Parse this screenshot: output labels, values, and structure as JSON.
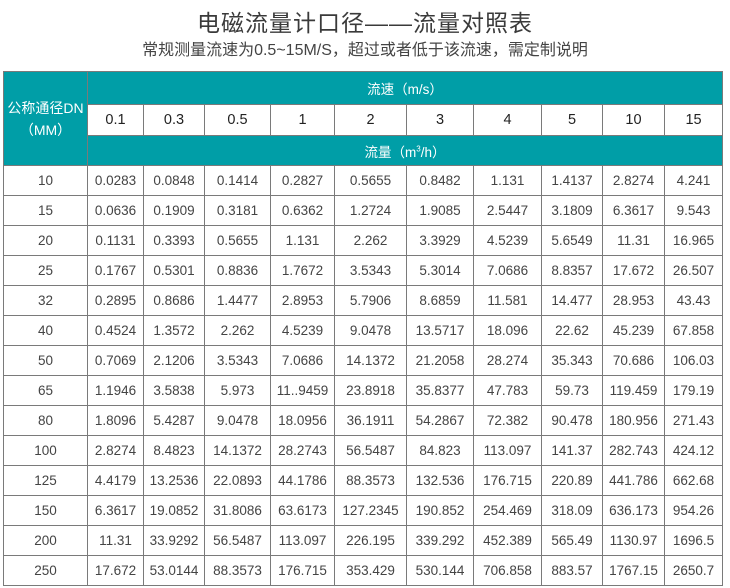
{
  "title": "电磁流量计口径——流量对照表",
  "subtitle": "常规测量流速为0.5~15M/S，超过或者低于该流速，需定制说明",
  "colors": {
    "header_bg": "#009ea7",
    "header_text": "#ffffff",
    "border": "#7a7a7a"
  },
  "table": {
    "dn_header_line1": "公称通径DN",
    "dn_header_line2": "（MM）",
    "velocity_header": "流速（m/s）",
    "flow_header_prefix": "流量（m",
    "flow_header_sup": "3",
    "flow_header_suffix": "/h）",
    "velocities": [
      "0.1",
      "0.3",
      "0.5",
      "1",
      "2",
      "3",
      "4",
      "5",
      "10",
      "15"
    ],
    "rows": [
      {
        "dn": "10",
        "values": [
          "0.0283",
          "0.0848",
          "0.1414",
          "0.2827",
          "0.5655",
          "0.8482",
          "1.131",
          "1.4137",
          "2.8274",
          "4.241"
        ]
      },
      {
        "dn": "15",
        "values": [
          "0.0636",
          "0.1909",
          "0.3181",
          "0.6362",
          "1.2724",
          "1.9085",
          "2.5447",
          "3.1809",
          "6.3617",
          "9.543"
        ]
      },
      {
        "dn": "20",
        "values": [
          "0.1131",
          "0.3393",
          "0.5655",
          "1.131",
          "2.262",
          "3.3929",
          "4.5239",
          "5.6549",
          "11.31",
          "16.965"
        ]
      },
      {
        "dn": "25",
        "values": [
          "0.1767",
          "0.5301",
          "0.8836",
          "1.7672",
          "3.5343",
          "5.3014",
          "7.0686",
          "8.8357",
          "17.672",
          "26.507"
        ]
      },
      {
        "dn": "32",
        "values": [
          "0.2895",
          "0.8686",
          "1.4477",
          "2.8953",
          "5.7906",
          "8.6859",
          "11.581",
          "14.477",
          "28.953",
          "43.43"
        ]
      },
      {
        "dn": "40",
        "values": [
          "0.4524",
          "1.3572",
          "2.262",
          "4.5239",
          "9.0478",
          "13.5717",
          "18.096",
          "22.62",
          "45.239",
          "67.858"
        ]
      },
      {
        "dn": "50",
        "values": [
          "0.7069",
          "2.1206",
          "3.5343",
          "7.0686",
          "14.1372",
          "21.2058",
          "28.274",
          "35.343",
          "70.686",
          "106.03"
        ]
      },
      {
        "dn": "65",
        "values": [
          "1.1946",
          "3.5838",
          "5.973",
          "11..9459",
          "23.8918",
          "35.8377",
          "47.783",
          "59.73",
          "119.459",
          "179.19"
        ]
      },
      {
        "dn": "80",
        "values": [
          "1.8096",
          "5.4287",
          "9.0478",
          "18.0956",
          "36.1911",
          "54.2867",
          "72.382",
          "90.478",
          "180.956",
          "271.43"
        ]
      },
      {
        "dn": "100",
        "values": [
          "2.8274",
          "8.4823",
          "14.1372",
          "28.2743",
          "56.5487",
          "84.823",
          "113.097",
          "141.37",
          "282.743",
          "424.12"
        ]
      },
      {
        "dn": "125",
        "values": [
          "4.4179",
          "13.2536",
          "22.0893",
          "44.1786",
          "88.3573",
          "132.536",
          "176.715",
          "220.89",
          "441.786",
          "662.68"
        ]
      },
      {
        "dn": "150",
        "values": [
          "6.3617",
          "19.0852",
          "31.8086",
          "63.6173",
          "127.2345",
          "190.852",
          "254.469",
          "318.09",
          "636.173",
          "954.26"
        ]
      },
      {
        "dn": "200",
        "values": [
          "11.31",
          "33.9292",
          "56.5487",
          "113.097",
          "226.195",
          "339.292",
          "452.389",
          "565.49",
          "1130.97",
          "1696.5"
        ]
      },
      {
        "dn": "250",
        "values": [
          "17.672",
          "53.0144",
          "88.3573",
          "176.715",
          "353.429",
          "530.144",
          "706.858",
          "883.57",
          "1767.15",
          "2650.7"
        ]
      }
    ]
  }
}
